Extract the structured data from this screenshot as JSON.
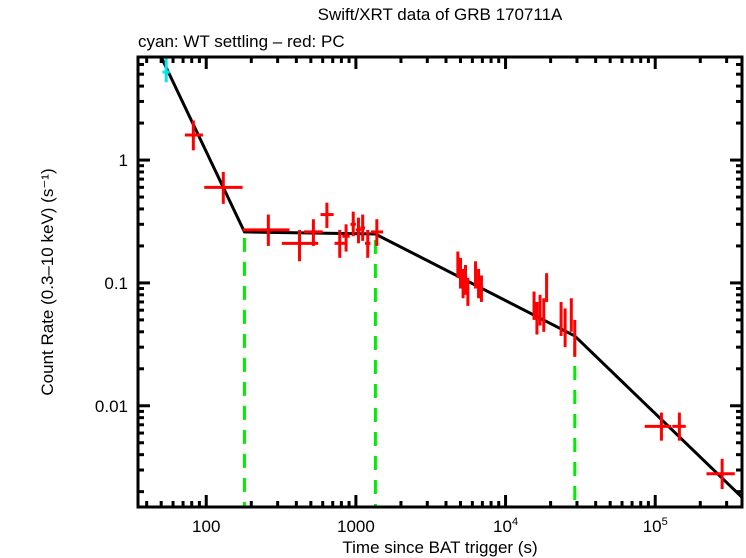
{
  "chart_data": {
    "type": "scatter",
    "title": "Swift/XRT data of GRB 170711A",
    "subtitle": "cyan: WT settling – red: PC",
    "xlabel": "Time since BAT trigger (s)",
    "ylabel": "Count Rate (0.3–10 keV) (s⁻¹)",
    "xscale": "log",
    "yscale": "log",
    "xlim": [
      35,
      380000
    ],
    "ylim": [
      0.0015,
      6.9
    ],
    "x_ticks": [
      {
        "value": 100,
        "label": "100"
      },
      {
        "value": 1000,
        "label": "1000"
      },
      {
        "value": 10000,
        "label": "10",
        "sup": "4"
      },
      {
        "value": 100000,
        "label": "10",
        "sup": "5"
      }
    ],
    "y_ticks": [
      {
        "value": 1,
        "label": "1"
      },
      {
        "value": 0.1,
        "label": "0.1"
      },
      {
        "value": 0.01,
        "label": "0.01"
      }
    ],
    "grid": false,
    "series": [
      {
        "name": "WT settling",
        "color": "#00e5ee",
        "points": [
          {
            "x": 54,
            "y": 5.2,
            "xlo": 51,
            "xhi": 57,
            "ylo": 4.3,
            "yhi": 6.9
          }
        ]
      },
      {
        "name": "PC",
        "color": "#ff0000",
        "points": [
          {
            "x": 82,
            "y": 1.6,
            "xlo": 72,
            "xhi": 95,
            "ylo": 1.2,
            "yhi": 2.1
          },
          {
            "x": 130,
            "y": 0.6,
            "xlo": 97,
            "xhi": 175,
            "ylo": 0.44,
            "yhi": 0.8
          },
          {
            "x": 260,
            "y": 0.27,
            "xlo": 175,
            "xhi": 360,
            "ylo": 0.2,
            "yhi": 0.36
          },
          {
            "x": 420,
            "y": 0.21,
            "xlo": 320,
            "xhi": 560,
            "ylo": 0.15,
            "yhi": 0.27
          },
          {
            "x": 520,
            "y": 0.26,
            "xlo": 450,
            "xhi": 600,
            "ylo": 0.2,
            "yhi": 0.33
          },
          {
            "x": 640,
            "y": 0.36,
            "xlo": 580,
            "xhi": 710,
            "ylo": 0.28,
            "yhi": 0.45
          },
          {
            "x": 780,
            "y": 0.21,
            "xlo": 720,
            "xhi": 850,
            "ylo": 0.16,
            "yhi": 0.27
          },
          {
            "x": 860,
            "y": 0.24,
            "xlo": 810,
            "xhi": 910,
            "ylo": 0.18,
            "yhi": 0.3
          },
          {
            "x": 960,
            "y": 0.3,
            "xlo": 920,
            "xhi": 1000,
            "ylo": 0.24,
            "yhi": 0.38
          },
          {
            "x": 1040,
            "y": 0.27,
            "xlo": 1000,
            "xhi": 1080,
            "ylo": 0.21,
            "yhi": 0.34
          },
          {
            "x": 1110,
            "y": 0.28,
            "xlo": 1070,
            "xhi": 1150,
            "ylo": 0.22,
            "yhi": 0.36
          },
          {
            "x": 1200,
            "y": 0.21,
            "xlo": 1150,
            "xhi": 1250,
            "ylo": 0.16,
            "yhi": 0.27
          },
          {
            "x": 1380,
            "y": 0.26,
            "xlo": 1260,
            "xhi": 1520,
            "ylo": 0.2,
            "yhi": 0.33
          },
          {
            "x": 4800,
            "y": 0.14,
            "xlo": 4700,
            "xhi": 4900,
            "ylo": 0.11,
            "yhi": 0.18
          },
          {
            "x": 5000,
            "y": 0.12,
            "xlo": 4900,
            "xhi": 5100,
            "ylo": 0.09,
            "yhi": 0.16
          },
          {
            "x": 5200,
            "y": 0.1,
            "xlo": 5100,
            "xhi": 5300,
            "ylo": 0.075,
            "yhi": 0.13
          },
          {
            "x": 5400,
            "y": 0.11,
            "xlo": 5300,
            "xhi": 5500,
            "ylo": 0.08,
            "yhi": 0.14
          },
          {
            "x": 5600,
            "y": 0.085,
            "xlo": 5500,
            "xhi": 5700,
            "ylo": 0.065,
            "yhi": 0.11
          },
          {
            "x": 6300,
            "y": 0.12,
            "xlo": 6200,
            "xhi": 6400,
            "ylo": 0.09,
            "yhi": 0.15
          },
          {
            "x": 6600,
            "y": 0.1,
            "xlo": 6500,
            "xhi": 6700,
            "ylo": 0.075,
            "yhi": 0.13
          },
          {
            "x": 6900,
            "y": 0.09,
            "xlo": 6800,
            "xhi": 7000,
            "ylo": 0.07,
            "yhi": 0.115
          },
          {
            "x": 15500,
            "y": 0.065,
            "xlo": 15200,
            "xhi": 15800,
            "ylo": 0.05,
            "yhi": 0.085
          },
          {
            "x": 16200,
            "y": 0.052,
            "xlo": 15900,
            "xhi": 16500,
            "ylo": 0.038,
            "yhi": 0.07
          },
          {
            "x": 17000,
            "y": 0.06,
            "xlo": 16700,
            "xhi": 17300,
            "ylo": 0.045,
            "yhi": 0.08
          },
          {
            "x": 18000,
            "y": 0.055,
            "xlo": 17700,
            "xhi": 18300,
            "ylo": 0.04,
            "yhi": 0.075
          },
          {
            "x": 18800,
            "y": 0.095,
            "xlo": 18600,
            "xhi": 19000,
            "ylo": 0.07,
            "yhi": 0.12
          },
          {
            "x": 23500,
            "y": 0.05,
            "xlo": 23000,
            "xhi": 24000,
            "ylo": 0.037,
            "yhi": 0.07
          },
          {
            "x": 25000,
            "y": 0.045,
            "xlo": 24500,
            "xhi": 25500,
            "ylo": 0.03,
            "yhi": 0.062
          },
          {
            "x": 27500,
            "y": 0.055,
            "xlo": 27000,
            "xhi": 28000,
            "ylo": 0.04,
            "yhi": 0.075
          },
          {
            "x": 29000,
            "y": 0.035,
            "xlo": 28500,
            "xhi": 29500,
            "ylo": 0.025,
            "yhi": 0.05
          },
          {
            "x": 110000,
            "y": 0.0068,
            "xlo": 85000,
            "xhi": 128000,
            "ylo": 0.0052,
            "yhi": 0.0088
          },
          {
            "x": 145000,
            "y": 0.0068,
            "xlo": 130000,
            "xhi": 160000,
            "ylo": 0.0052,
            "yhi": 0.0088
          },
          {
            "x": 280000,
            "y": 0.0028,
            "xlo": 220000,
            "xhi": 340000,
            "ylo": 0.0021,
            "yhi": 0.0037
          }
        ]
      }
    ],
    "model": {
      "name": "broken power-law fit",
      "color": "#000000",
      "vertices": [
        {
          "x": 50,
          "y": 6.9
        },
        {
          "x": 180,
          "y": 0.26
        },
        {
          "x": 1350,
          "y": 0.25
        },
        {
          "x": 29000,
          "y": 0.037
        },
        {
          "x": 390000,
          "y": 0.0018
        }
      ]
    },
    "breaks": {
      "color": "#00ee00",
      "x": [
        180,
        1350,
        29000
      ]
    }
  }
}
